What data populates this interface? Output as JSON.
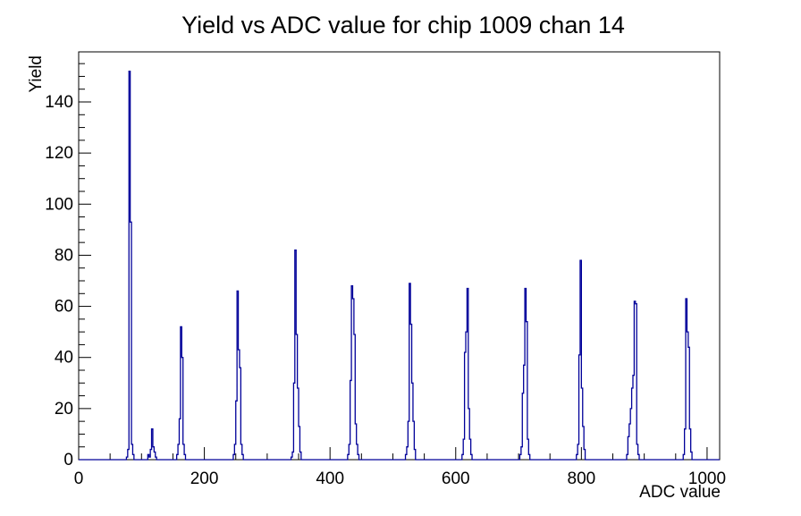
{
  "page": {
    "background": "#ffffff"
  },
  "chart_data": {
    "type": "histogram-step-line",
    "title": "Yield vs ADC value for chip 1009 chan 14",
    "xlabel": "ADC value",
    "ylabel": "Yield",
    "xlim": [
      0,
      1020
    ],
    "ylim": [
      0,
      159.6
    ],
    "x_major_ticks": [
      0,
      200,
      400,
      600,
      800,
      1000
    ],
    "x_minor_step": 50,
    "y_major_ticks": [
      0,
      20,
      40,
      60,
      80,
      100,
      120,
      140
    ],
    "y_minor_step": 5,
    "grid": false,
    "legend": false,
    "line_color": "#000099",
    "axis_color": "#000000",
    "bin_width": 2,
    "bins": [
      [
        76,
        1
      ],
      [
        78,
        4
      ],
      [
        80,
        152
      ],
      [
        82,
        93
      ],
      [
        84,
        6
      ],
      [
        86,
        2
      ],
      [
        110,
        2
      ],
      [
        112,
        1
      ],
      [
        114,
        4
      ],
      [
        116,
        12
      ],
      [
        118,
        5
      ],
      [
        120,
        3
      ],
      [
        122,
        1
      ],
      [
        156,
        2
      ],
      [
        158,
        6
      ],
      [
        160,
        16
      ],
      [
        162,
        52
      ],
      [
        164,
        40
      ],
      [
        166,
        6
      ],
      [
        168,
        2
      ],
      [
        246,
        2
      ],
      [
        248,
        6
      ],
      [
        250,
        23
      ],
      [
        252,
        66
      ],
      [
        254,
        43
      ],
      [
        256,
        36
      ],
      [
        258,
        6
      ],
      [
        260,
        2
      ],
      [
        338,
        1
      ],
      [
        340,
        3
      ],
      [
        342,
        30
      ],
      [
        344,
        82
      ],
      [
        346,
        49
      ],
      [
        348,
        28
      ],
      [
        350,
        13
      ],
      [
        352,
        3
      ],
      [
        428,
        2
      ],
      [
        430,
        6
      ],
      [
        432,
        31
      ],
      [
        434,
        68
      ],
      [
        436,
        63
      ],
      [
        438,
        49
      ],
      [
        440,
        14
      ],
      [
        442,
        6
      ],
      [
        444,
        2
      ],
      [
        520,
        2
      ],
      [
        522,
        5
      ],
      [
        524,
        15
      ],
      [
        526,
        69
      ],
      [
        528,
        53
      ],
      [
        530,
        30
      ],
      [
        532,
        15
      ],
      [
        534,
        4
      ],
      [
        610,
        2
      ],
      [
        612,
        8
      ],
      [
        614,
        42
      ],
      [
        616,
        50
      ],
      [
        618,
        67
      ],
      [
        620,
        20
      ],
      [
        622,
        8
      ],
      [
        624,
        2
      ],
      [
        702,
        2
      ],
      [
        704,
        5
      ],
      [
        706,
        26
      ],
      [
        708,
        37
      ],
      [
        710,
        67
      ],
      [
        712,
        54
      ],
      [
        714,
        8
      ],
      [
        716,
        2
      ],
      [
        792,
        2
      ],
      [
        794,
        6
      ],
      [
        796,
        41
      ],
      [
        798,
        78
      ],
      [
        800,
        28
      ],
      [
        802,
        13
      ],
      [
        804,
        4
      ],
      [
        872,
        2
      ],
      [
        874,
        9
      ],
      [
        876,
        14
      ],
      [
        878,
        20
      ],
      [
        880,
        28
      ],
      [
        882,
        33
      ],
      [
        884,
        62
      ],
      [
        886,
        61
      ],
      [
        888,
        6
      ],
      [
        890,
        2
      ],
      [
        962,
        2
      ],
      [
        964,
        12
      ],
      [
        966,
        63
      ],
      [
        968,
        50
      ],
      [
        970,
        44
      ],
      [
        972,
        12
      ],
      [
        974,
        3
      ]
    ],
    "peak_centers_adc": [
      81,
      117,
      163,
      253,
      345,
      435,
      527,
      619,
      711,
      799,
      885,
      967
    ],
    "peak_heights": [
      152,
      12,
      52,
      66,
      82,
      68,
      69,
      67,
      67,
      78,
      62,
      63
    ]
  }
}
